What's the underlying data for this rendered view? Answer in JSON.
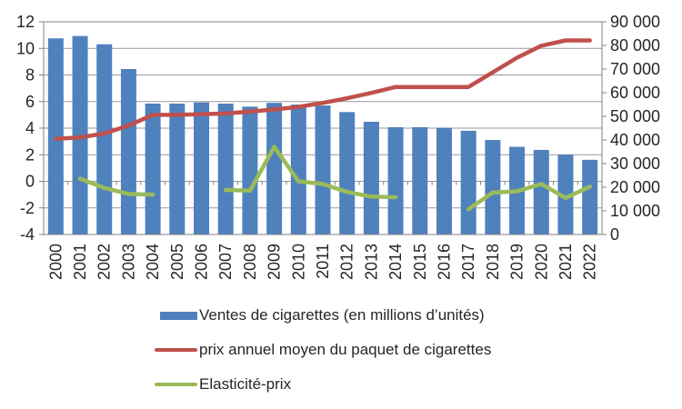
{
  "chart_data": {
    "type": "combo",
    "title": "",
    "categories": [
      2000,
      2001,
      2002,
      2003,
      2004,
      2005,
      2006,
      2007,
      2008,
      2009,
      2010,
      2011,
      2012,
      2013,
      2014,
      2015,
      2016,
      2017,
      2018,
      2019,
      2020,
      2021,
      2022
    ],
    "series": [
      {
        "name": "Ventes de cigarettes (en millions d’unités)",
        "type": "bar",
        "axis": "right",
        "color": "#4F81BD",
        "values": [
          83000,
          84000,
          80500,
          70000,
          55400,
          55400,
          55900,
          55400,
          54100,
          55700,
          55000,
          54600,
          51800,
          47700,
          45400,
          45400,
          45200,
          43900,
          40000,
          37100,
          35800,
          33800,
          31600
        ]
      },
      {
        "name": "prix annuel moyen du paquet de cigarettes",
        "type": "line",
        "axis": "left",
        "color": "#C0504D",
        "values": [
          3.2,
          3.3,
          3.6,
          4.2,
          5.0,
          5.0,
          5.05,
          5.1,
          5.25,
          5.4,
          5.6,
          5.9,
          6.25,
          6.65,
          7.1,
          7.1,
          7.1,
          7.1,
          8.2,
          9.3,
          10.2,
          10.6,
          10.6
        ]
      },
      {
        "name": "Elasticité-prix",
        "type": "line",
        "axis": "left",
        "color": "#9BBB59",
        "values": [
          null,
          0.2,
          -0.5,
          -0.95,
          -1.0,
          null,
          null,
          -0.65,
          -0.7,
          2.6,
          0.0,
          -0.2,
          -0.8,
          -1.15,
          -1.2,
          null,
          null,
          -2.1,
          -0.85,
          -0.75,
          -0.2,
          -1.25,
          -0.4
        ]
      }
    ],
    "left_axis": {
      "min": -4,
      "max": 12,
      "step": 2,
      "tick_labels": [
        "12",
        "10",
        "8",
        "6",
        "4",
        "2",
        "0",
        "-2",
        "-4"
      ]
    },
    "right_axis": {
      "min": 0,
      "max": 90000,
      "step": 10000,
      "tick_labels": [
        "90 000",
        "80 000",
        "70 000",
        "60 000",
        "50 000",
        "40 000",
        "30 000",
        "20 000",
        "10 000",
        "0"
      ]
    },
    "grid": true,
    "legend_position": "bottom",
    "colors": {
      "gridline": "#999999",
      "plot_border": "#808080",
      "tick": "#808080",
      "axis_text": "#262626"
    }
  }
}
